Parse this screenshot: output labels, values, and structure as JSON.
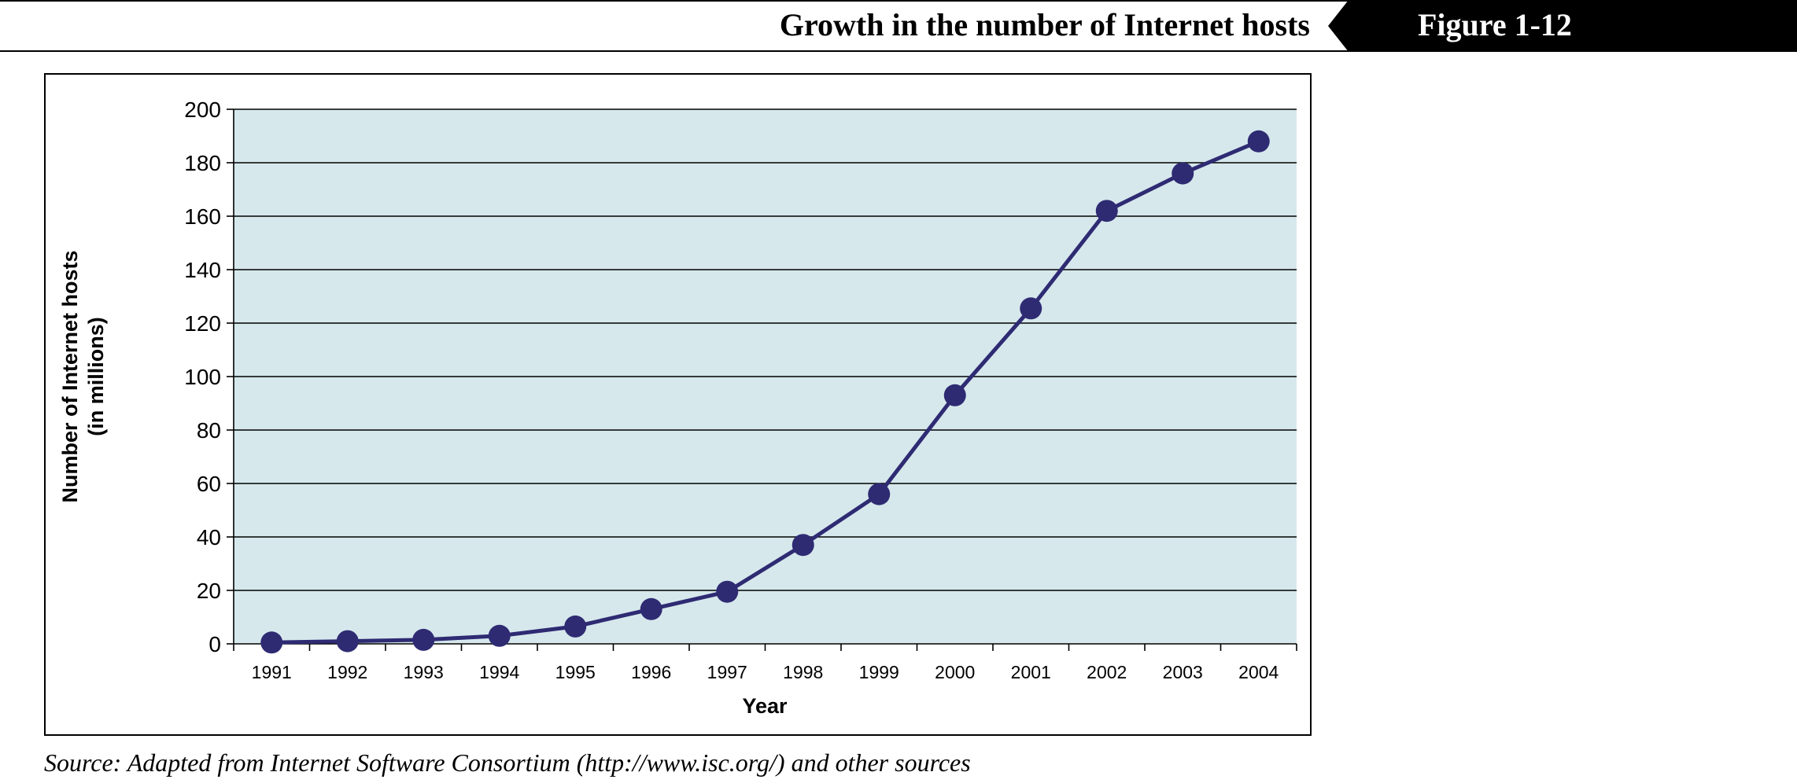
{
  "header": {
    "title": "Growth in the number of Internet hosts",
    "figure_label": "Figure 1-12"
  },
  "source_note": "Source: Adapted from Internet Software Consortium (http://www.isc.org/) and other sources",
  "colors": {
    "plot_background": "#d6e8ec",
    "series_line": "#2e2b73",
    "marker": "#2e2b73",
    "gridline": "#000000",
    "tab_background": "#000000"
  },
  "chart_data": {
    "type": "line",
    "title": "",
    "xlabel": "Year",
    "ylabel": "Number of Internet hosts",
    "ylabel_line2": "(in millions)",
    "categories": [
      "1991",
      "1992",
      "1993",
      "1994",
      "1995",
      "1996",
      "1997",
      "1998",
      "1999",
      "2000",
      "2001",
      "2002",
      "2003",
      "2004"
    ],
    "series": [
      {
        "values": [
          0.5,
          1,
          1.5,
          3,
          6.5,
          13,
          19.5,
          37,
          56,
          93,
          125.5,
          162,
          176,
          188
        ]
      }
    ],
    "ylim": [
      0,
      200
    ],
    "yticks": [
      "0",
      "20",
      "40",
      "60",
      "80",
      "100",
      "120",
      "140",
      "160",
      "180",
      "200"
    ],
    "grid": true,
    "legend": "none"
  }
}
